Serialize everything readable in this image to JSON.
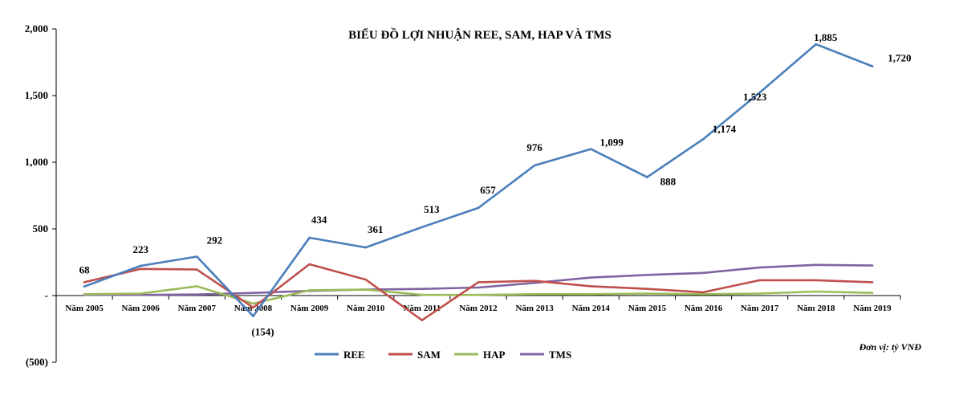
{
  "chart_data": {
    "type": "line",
    "title": "BIỂU ĐỒ LỢI NHUẬN REE, SAM, HAP VÀ TMS",
    "unit_note": "Đơn vị: tỷ VNĐ",
    "xlabel": "",
    "ylabel": "",
    "ylim": [
      -500,
      2000
    ],
    "y_ticks": [
      {
        "value": 2000,
        "label": "2,000"
      },
      {
        "value": 1500,
        "label": "1,500"
      },
      {
        "value": 1000,
        "label": "1,000"
      },
      {
        "value": 500,
        "label": "500"
      },
      {
        "value": 0,
        "label": "-"
      },
      {
        "value": -500,
        "label": "(500)"
      }
    ],
    "categories": [
      "Năm 2005",
      "Năm 2006",
      "Năm 2007",
      "Năm 2008",
      "Năm 2009",
      "Năm 2010",
      "Năm 2011",
      "Năm 2012",
      "Năm 2013",
      "Năm 2014",
      "Năm 2015",
      "Năm 2016",
      "Năm 2017",
      "Năm 2018",
      "Năm 2019"
    ],
    "legend_position": "bottom",
    "series": [
      {
        "name": "REE",
        "color": "#4a7ebb",
        "values": [
          68,
          223,
          292,
          -154,
          434,
          361,
          513,
          657,
          976,
          1099,
          888,
          1174,
          1523,
          1885,
          1720
        ],
        "labels": [
          "68",
          "223",
          "292",
          "(154)",
          "434",
          "361",
          "513",
          "657",
          "976",
          "1,099",
          "888",
          "1,174",
          "1,523",
          "1,885",
          "1,720"
        ]
      },
      {
        "name": "SAM",
        "color": "#c0504d",
        "values": [
          100,
          200,
          195,
          -90,
          235,
          120,
          -185,
          100,
          110,
          70,
          50,
          25,
          115,
          115,
          100
        ]
      },
      {
        "name": "HAP",
        "color": "#9bbb59",
        "values": [
          10,
          15,
          70,
          -60,
          40,
          45,
          5,
          5,
          10,
          10,
          15,
          10,
          15,
          30,
          20
        ]
      },
      {
        "name": "TMS",
        "color": "#8064a2",
        "values": [
          5,
          5,
          8,
          20,
          35,
          45,
          50,
          60,
          95,
          135,
          155,
          170,
          210,
          230,
          225
        ]
      }
    ]
  }
}
